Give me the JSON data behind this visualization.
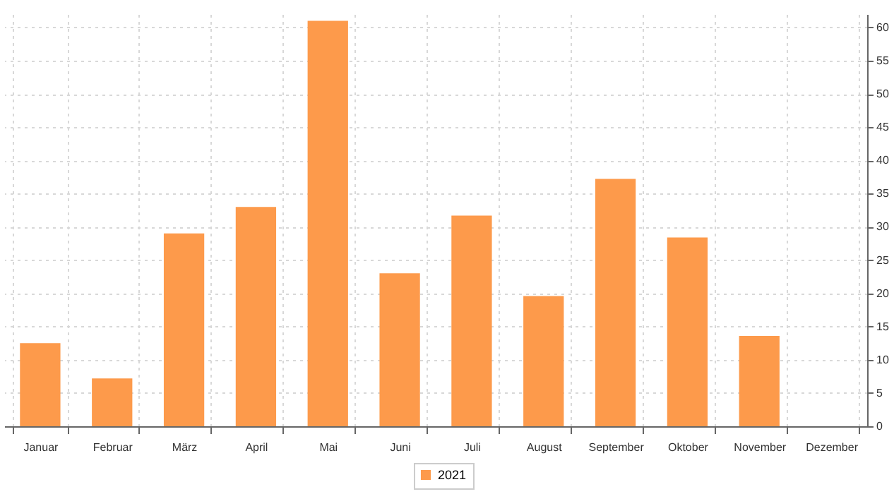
{
  "chart_data": {
    "type": "bar",
    "categories": [
      "Januar",
      "Februar",
      "März",
      "April",
      "Mai",
      "Juni",
      "Juli",
      "August",
      "September",
      "Oktober",
      "November",
      "Dezember"
    ],
    "series": [
      {
        "name": "2021",
        "color": "#fd9a4b",
        "values": [
          12.5,
          7.2,
          29,
          33,
          61,
          23,
          31.7,
          19.6,
          37.2,
          28.4,
          13.6,
          null
        ]
      }
    ],
    "ylim": [
      0,
      62
    ],
    "yticks": [
      0,
      5,
      10,
      15,
      20,
      25,
      30,
      35,
      40,
      45,
      50,
      55,
      60
    ],
    "grid": true,
    "legend": "bottom"
  }
}
